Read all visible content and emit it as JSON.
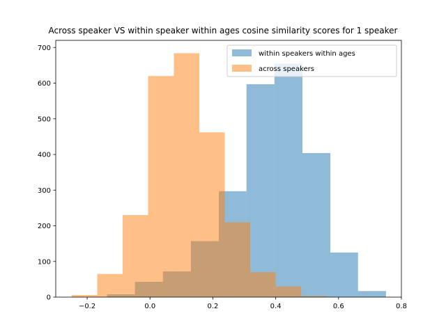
{
  "chart_data": {
    "type": "histogram",
    "title": "Across speaker VS within speaker within ages cosine similarity scores for 1 speaker",
    "xlabel": "",
    "ylabel": "",
    "xlim": [
      -0.3,
      0.8
    ],
    "ylim": [
      0,
      720
    ],
    "xticks": [
      -0.2,
      0.0,
      0.2,
      0.4,
      0.6,
      0.8
    ],
    "xtick_labels": [
      "−0.2",
      "0.0",
      "0.2",
      "0.4",
      "0.6",
      "0.8"
    ],
    "yticks": [
      0,
      100,
      200,
      300,
      400,
      500,
      600,
      700
    ],
    "ytick_labels": [
      "0",
      "100",
      "200",
      "300",
      "400",
      "500",
      "600",
      "700"
    ],
    "legend_position": "top-right",
    "series": [
      {
        "name": "within speakers within ages",
        "color": "#1f77b4",
        "alpha": 0.5,
        "bins": [
          {
            "x0": -0.137,
            "x1": -0.048,
            "count": 8
          },
          {
            "x0": -0.048,
            "x1": 0.041,
            "count": 43
          },
          {
            "x0": 0.041,
            "x1": 0.13,
            "count": 72
          },
          {
            "x0": 0.13,
            "x1": 0.219,
            "count": 157
          },
          {
            "x0": 0.219,
            "x1": 0.307,
            "count": 297
          },
          {
            "x0": 0.307,
            "x1": 0.396,
            "count": 597
          },
          {
            "x0": 0.396,
            "x1": 0.485,
            "count": 655
          },
          {
            "x0": 0.485,
            "x1": 0.574,
            "count": 404
          },
          {
            "x0": 0.574,
            "x1": 0.662,
            "count": 125
          },
          {
            "x0": 0.662,
            "x1": 0.751,
            "count": 17
          }
        ]
      },
      {
        "name": "across speakers",
        "color": "#ff7f0e",
        "alpha": 0.5,
        "bins": [
          {
            "x0": -0.249,
            "x1": -0.168,
            "count": 6
          },
          {
            "x0": -0.168,
            "x1": -0.087,
            "count": 65
          },
          {
            "x0": -0.087,
            "x1": -0.006,
            "count": 230
          },
          {
            "x0": -0.006,
            "x1": 0.076,
            "count": 620
          },
          {
            "x0": 0.076,
            "x1": 0.157,
            "count": 684
          },
          {
            "x0": 0.157,
            "x1": 0.238,
            "count": 462
          },
          {
            "x0": 0.238,
            "x1": 0.319,
            "count": 210
          },
          {
            "x0": 0.319,
            "x1": 0.4,
            "count": 70
          },
          {
            "x0": 0.4,
            "x1": 0.481,
            "count": 30
          },
          {
            "x0": 0.481,
            "x1": 0.562,
            "count": 3
          }
        ]
      }
    ]
  }
}
